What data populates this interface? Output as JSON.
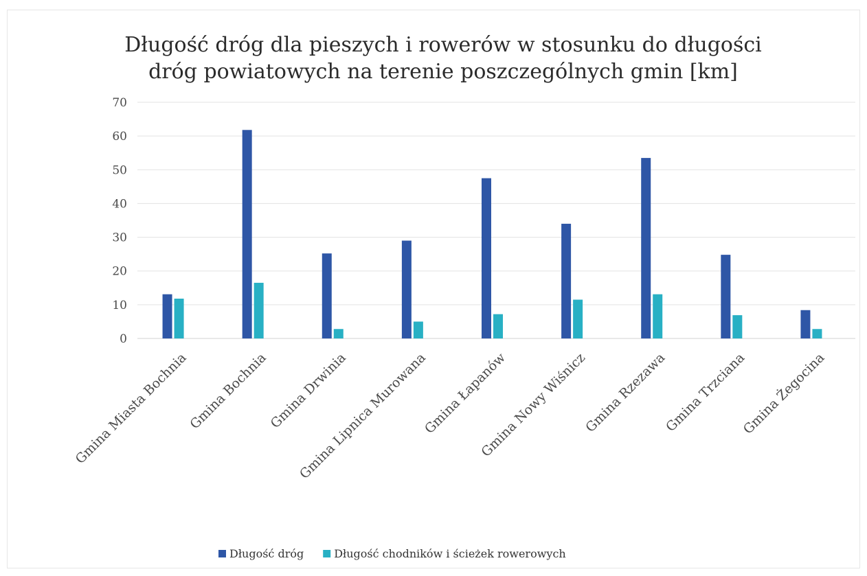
{
  "chart_data": {
    "type": "bar",
    "title_lines": [
      "Długość dróg dla pieszych i rowerów w stosunku do długości",
      "dróg powiatowych na terenie poszczególnych gmin [km]"
    ],
    "categories": [
      "Gmina Miasta Bochnia",
      "Gmina Bochnia",
      "Gmina Drwinia",
      "Gmina Lipnica Murowana",
      "Gmina Łapanów",
      "Gmina Nowy Wiśnicz",
      "Gmina Rzezawa",
      "Gmina Trzciana",
      "Gmina Żegocina"
    ],
    "series": [
      {
        "name": "Długość dróg",
        "color": "#2e56a6",
        "values": [
          13.1,
          61.8,
          25.2,
          29.0,
          47.5,
          34.0,
          53.5,
          24.8,
          8.4
        ]
      },
      {
        "name": "Długość chodników i ścieżek rowerowych",
        "color": "#28b0c4",
        "values": [
          11.8,
          16.5,
          2.8,
          5.0,
          7.2,
          11.5,
          13.1,
          6.9,
          2.8
        ]
      }
    ],
    "yticks": [
      0,
      10,
      20,
      30,
      40,
      50,
      60,
      70
    ],
    "ylim": [
      0,
      70
    ],
    "grid": true,
    "legend_position": "bottom"
  }
}
